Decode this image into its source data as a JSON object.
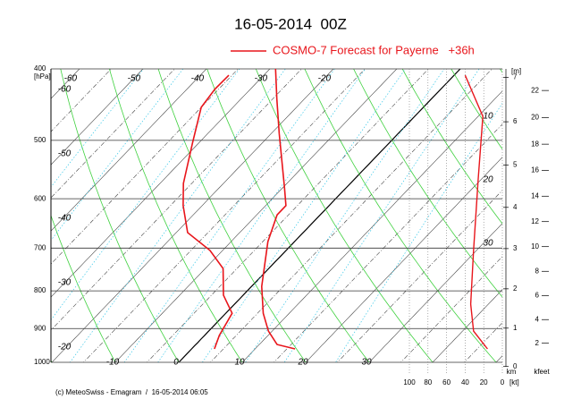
{
  "chart_data": {
    "type": "emagram",
    "title": "16-05-2014  00Z",
    "legend": "COSMO-7 Forecast for Payerne   +36h",
    "legend_color": "#e8151b",
    "footer": "(c) MeteoSwiss - Emagram  /  16-05-2014 06:05",
    "log_y": true,
    "ylim": [
      1000,
      400
    ],
    "yticks": [
      400,
      500,
      600,
      700,
      800,
      900,
      1000
    ],
    "pressure_unit": "[hPa]",
    "isotherm_labels": [
      -60,
      -50,
      -40,
      -30,
      -20,
      -10,
      0,
      10,
      20,
      30
    ],
    "dry_adiabat_labels": [
      -60,
      -50,
      -40,
      -30,
      -20
    ],
    "right_labels": [
      10,
      20,
      30
    ],
    "series": [
      {
        "color": "#e8151b",
        "pressure": [
          959,
          946,
          907,
          858,
          789,
          686,
          631,
          613,
          580,
          490,
          439,
          400
        ],
        "values": [
          16.3,
          12.8,
          9.4,
          5.9,
          1.6,
          -4.2,
          -6.8,
          -6.8,
          -9.7,
          -18.7,
          -24.4,
          -29.1
        ]
      },
      {
        "color": "#e8151b",
        "pressure": [
          959,
          919,
          858,
          811,
          746,
          705,
          667,
          613,
          572,
          504,
          451,
          426,
          408
        ],
        "values": [
          3.6,
          2.3,
          1.0,
          -3.1,
          -7.2,
          -12.0,
          -18.2,
          -23.0,
          -26.3,
          -31.0,
          -35.0,
          -35.6,
          -35.5
        ]
      }
    ],
    "wind_speed": {
      "color": "#e8151b",
      "pressure": [
        959,
        907,
        834,
        705,
        564,
        464,
        408
      ],
      "values": [
        16,
        31,
        34,
        31,
        26,
        21,
        40
      ]
    },
    "wind_ticks": [
      100,
      80,
      60,
      40,
      20,
      0
    ],
    "wind_unit": "[kt]",
    "km_label": "km",
    "height_unit": "[m]",
    "height_ticks": [
      0,
      1,
      2,
      3,
      4,
      5,
      6,
      7
    ],
    "kfeet_label": "kfeet",
    "kfeet_ticks": [
      2,
      4,
      6,
      8,
      10,
      12,
      14,
      16,
      18,
      20,
      22
    ]
  }
}
